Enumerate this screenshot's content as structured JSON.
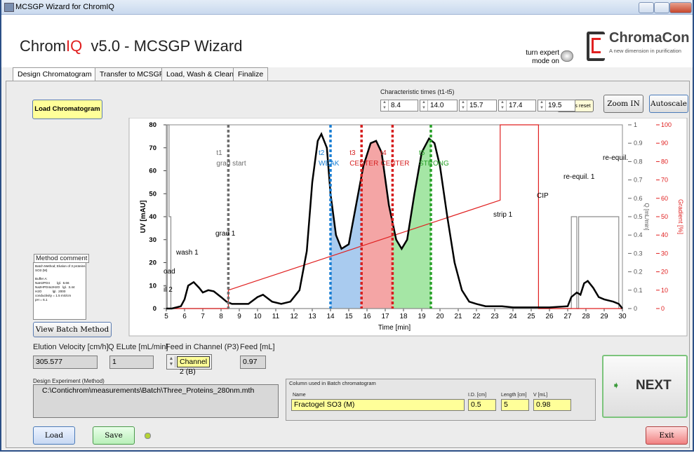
{
  "window_title": "MCSGP Wizard for ChromIQ",
  "header": {
    "brand": "Chrom",
    "brand_accent": "IQ",
    "title": "v5.0 - MCSGP Wizard",
    "expert_toggle": [
      "turn expert",
      "mode on"
    ],
    "logo": "ChromaCon",
    "logo_tagline": "A new dimension in purification"
  },
  "tabs": [
    "Design Chromatogram",
    "Transfer to MCSGP",
    "Load, Wash & Clean",
    "Finalize"
  ],
  "controls": {
    "char_times_label": "Characteristic times (t1-t5)",
    "cursors_reset": "cursors reset",
    "zoom_in": "Zoom IN",
    "autoscale": "Autoscale",
    "load_chromatogram": "Load Chromatogram",
    "view_batch_method": "View Batch Method",
    "load": "Load",
    "save": "Save",
    "next": "NEXT",
    "exit": "Exit"
  },
  "method_comment": {
    "label": "Method comment",
    "lines": [
      "Batch Method; Elution of 3 proteins on Fg",
      "SO3 (M)",
      "",
      "Buffer A:",
      "NaH2PO4        lgl.  6.66",
      "Na2HPO4x2H2O   lgl.  3.44",
      "H2O            lgl.  2000",
      "conductivity = 1.5 mS/cm",
      "pH = 6.1"
    ]
  },
  "fields": {
    "elution_velocity": {
      "label": "Elution Velocity [cm/h]",
      "value": "305.577"
    },
    "q_elute": {
      "label": "Q ELute [mL/min]",
      "value": "1"
    },
    "feed_channel": {
      "label": "Feed in Channel (P3)",
      "value": "Channel 2 (B)"
    },
    "feed": {
      "label": "Feed [mL]",
      "value": "0.97"
    }
  },
  "design_experiment": {
    "label": "Design Experiment (Method)",
    "path": "C:\\Contichrom\\measurements\\Batch\\Three_Proteins_280nm.mth"
  },
  "column": {
    "label": "Column used in Batch chromatogram",
    "name_label": "Name",
    "name": "Fractogel SO3 (M)",
    "id_label": "I.D. [cm]",
    "id": "0.5",
    "length_label": "Length [cm]",
    "length": "5",
    "volume_label": "V [mL]",
    "volume": "0.98"
  },
  "chart_data": {
    "type": "line",
    "xlabel": "Time [min]",
    "ylabel": "UV [mAU]",
    "y2label": "Q [mL/min]",
    "y3label": "Gradient [%]",
    "xlim": [
      5,
      30
    ],
    "xticks": [
      5,
      6,
      7,
      8,
      9,
      10,
      11,
      12,
      13,
      14,
      15,
      16,
      17,
      18,
      19,
      20,
      21,
      22,
      23,
      24,
      25,
      26,
      27,
      28,
      29,
      30
    ],
    "ylim": [
      0,
      80
    ],
    "yticks": [
      0,
      10,
      20,
      30,
      40,
      50,
      60,
      70,
      80
    ],
    "y2lim": [
      0,
      1
    ],
    "y2ticks": [
      0,
      0.1,
      0.2,
      0.3,
      0.4,
      0.5,
      0.6,
      0.7,
      0.8,
      0.9,
      1
    ],
    "y3lim": [
      0,
      100
    ],
    "y3ticks": [
      0,
      10,
      20,
      30,
      40,
      50,
      60,
      70,
      80,
      90,
      100
    ],
    "y3color": "#e02020",
    "series": [
      {
        "color": "#000000",
        "axis": "y",
        "x": [
          5,
          5.3,
          5.8,
          6,
          6.2,
          6.5,
          6.8,
          7,
          7.3,
          7.6,
          8,
          8.3,
          8.6,
          9,
          9.5,
          10,
          10.3,
          10.8,
          11.3,
          11.8,
          12.3,
          12.7,
          13,
          13.3,
          13.5,
          13.8,
          14,
          14.3,
          14.6,
          15,
          15.4,
          15.8,
          16.2,
          16.5,
          16.8,
          17.2,
          17.6,
          17.9,
          18.2,
          18.6,
          19,
          19.4,
          19.7,
          20,
          20.4,
          20.8,
          21.2,
          21.6,
          22,
          22.5,
          23,
          23.4,
          24,
          25,
          26,
          27,
          27.2,
          27.5,
          27.7,
          27.9,
          28.1,
          28.4,
          28.7,
          29,
          29.5,
          29.8,
          30
        ],
        "values": [
          0,
          0,
          1,
          4,
          10,
          11.5,
          9,
          7,
          8,
          7.5,
          5,
          3,
          2,
          2,
          2,
          5,
          6,
          3,
          2,
          3,
          8,
          25,
          55,
          73,
          76,
          70,
          50,
          32,
          26,
          28,
          45,
          62,
          72,
          73,
          68,
          45,
          30,
          26,
          30,
          50,
          68,
          74,
          72,
          62,
          40,
          20,
          8,
          3,
          2,
          1,
          1,
          1,
          0.5,
          0.5,
          0.5,
          1,
          5,
          7,
          6,
          11,
          12,
          9,
          5,
          4,
          3,
          2,
          0
        ]
      },
      {
        "color": "#e02020",
        "axis": "y3",
        "x": [
          5,
          8.4,
          8.4,
          23.3,
          23.3,
          25.4,
          25.4,
          30
        ],
        "values": [
          0,
          0,
          10,
          59,
          100,
          100,
          0,
          0
        ]
      },
      {
        "color": "#8c8c8c",
        "axis": "y2",
        "x": [
          5,
          5.05,
          5.05,
          5.15,
          5.15,
          5.25,
          5.25,
          27.2,
          27.2,
          27.5,
          27.5,
          27.6,
          27.6,
          29.8,
          29.8,
          30
        ],
        "values": [
          0,
          0,
          1,
          1,
          0.5,
          0.5,
          0,
          0,
          0.5,
          0.5,
          0,
          0,
          0.5,
          0.5,
          0,
          0
        ]
      }
    ],
    "cursors": [
      {
        "value": 8.4,
        "label": "8.4",
        "tag": "t1",
        "name": "grad start",
        "color": "#6e6e6e"
      },
      {
        "value": 14,
        "label": "14.0",
        "tag": "t2",
        "name": "WEAK",
        "color": "#1a7fd4"
      },
      {
        "value": 15.7,
        "label": "15.7",
        "tag": "t3",
        "name": "CENTER",
        "color": "#d62020"
      },
      {
        "value": 17.4,
        "label": "17.4",
        "tag": "t4",
        "name": "CENTER",
        "color": "#d62020"
      },
      {
        "value": 19.5,
        "label": "19.5",
        "tag": "t5",
        "name": "STRONG",
        "color": "#28a028"
      }
    ],
    "fraction_colors": [
      "#a9cbef",
      "#f4a5a5",
      "#a5e6a5"
    ],
    "annotations": [
      "grad 1",
      "wash 1",
      "oad",
      "il 2",
      "strip 1",
      "CIP",
      "re-equil. 1",
      "re-equil."
    ]
  }
}
